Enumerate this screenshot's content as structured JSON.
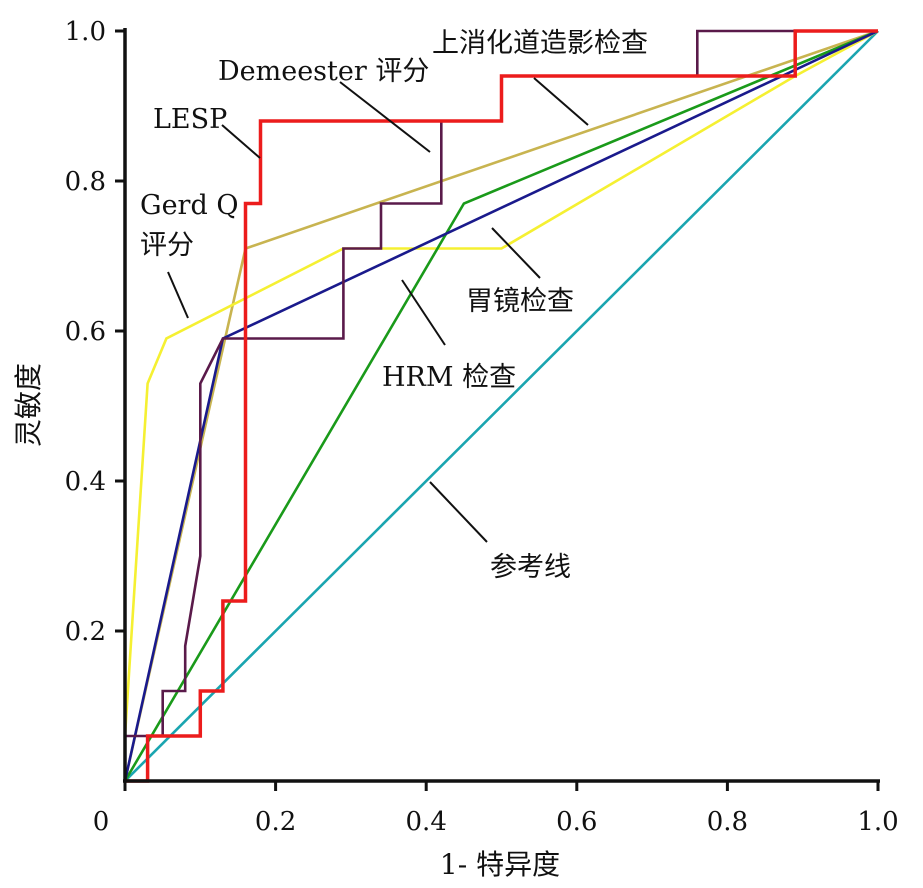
{
  "chart_data": {
    "type": "line",
    "xlabel": "1- 特异度",
    "ylabel": "灵敏度",
    "xlim": [
      0,
      1.0
    ],
    "ylim": [
      0,
      1.0
    ],
    "x_ticks": [
      "0",
      "0.2",
      "0.4",
      "0.6",
      "0.8",
      "1.0"
    ],
    "y_ticks": [
      "0.2",
      "0.4",
      "0.6",
      "0.8",
      "1.0"
    ],
    "grid": false,
    "legend": "none",
    "annotations": [
      "上消化道造影检查",
      "Demeester 评分",
      "LESP",
      "Gerd Q",
      "评分",
      "胃镜检查",
      "HRM 检查",
      "参考线"
    ],
    "series": [
      {
        "name": "参考线",
        "color": "#1aa5b0",
        "points": [
          [
            0,
            0
          ],
          [
            1.0,
            1.0
          ]
        ]
      },
      {
        "name": "上消化道造影检查",
        "color": "#c8b450",
        "points": [
          [
            0,
            0
          ],
          [
            0.16,
            0.71
          ],
          [
            1.0,
            1.0
          ]
        ]
      },
      {
        "name": "胃镜检查",
        "color": "#f5f032",
        "points": [
          [
            0,
            0.06
          ],
          [
            0.03,
            0.53
          ],
          [
            0.055,
            0.59
          ],
          [
            0.29,
            0.71
          ],
          [
            0.5,
            0.71
          ],
          [
            0.89,
            0.94
          ],
          [
            1.0,
            1.0
          ]
        ]
      },
      {
        "name": "HRM 检查",
        "color": "#1a9a1a",
        "points": [
          [
            0,
            0
          ],
          [
            0.45,
            0.77
          ],
          [
            1.0,
            1.0
          ]
        ]
      },
      {
        "name": "",
        "color": "#1a1a8c",
        "points": [
          [
            0,
            0
          ],
          [
            0.13,
            0.59
          ],
          [
            1.0,
            1.0
          ]
        ]
      },
      {
        "name": "Demeester 评分",
        "color": "#5a1a4a",
        "points": [
          [
            0,
            0
          ],
          [
            0,
            0.06
          ],
          [
            0.05,
            0.06
          ],
          [
            0.05,
            0.12
          ],
          [
            0.08,
            0.12
          ],
          [
            0.08,
            0.18
          ],
          [
            0.09,
            0.24
          ],
          [
            0.1,
            0.3
          ],
          [
            0.1,
            0.53
          ],
          [
            0.13,
            0.59
          ],
          [
            0.29,
            0.59
          ],
          [
            0.29,
            0.71
          ],
          [
            0.34,
            0.71
          ],
          [
            0.34,
            0.77
          ],
          [
            0.42,
            0.77
          ],
          [
            0.42,
            0.88
          ],
          [
            0.5,
            0.88
          ],
          [
            0.5,
            0.94
          ],
          [
            0.76,
            0.94
          ],
          [
            0.76,
            1.0
          ],
          [
            1.0,
            1.0
          ]
        ]
      },
      {
        "name": "LESP",
        "color": "#ec1c1c",
        "points": [
          [
            0,
            0
          ],
          [
            0.03,
            0
          ],
          [
            0.03,
            0.06
          ],
          [
            0.1,
            0.06
          ],
          [
            0.1,
            0.12
          ],
          [
            0.13,
            0.12
          ],
          [
            0.13,
            0.24
          ],
          [
            0.16,
            0.24
          ],
          [
            0.16,
            0.77
          ],
          [
            0.18,
            0.77
          ],
          [
            0.18,
            0.88
          ],
          [
            0.5,
            0.88
          ],
          [
            0.5,
            0.94
          ],
          [
            0.89,
            0.94
          ],
          [
            0.89,
            1.0
          ],
          [
            1.0,
            1.0
          ]
        ]
      }
    ]
  }
}
